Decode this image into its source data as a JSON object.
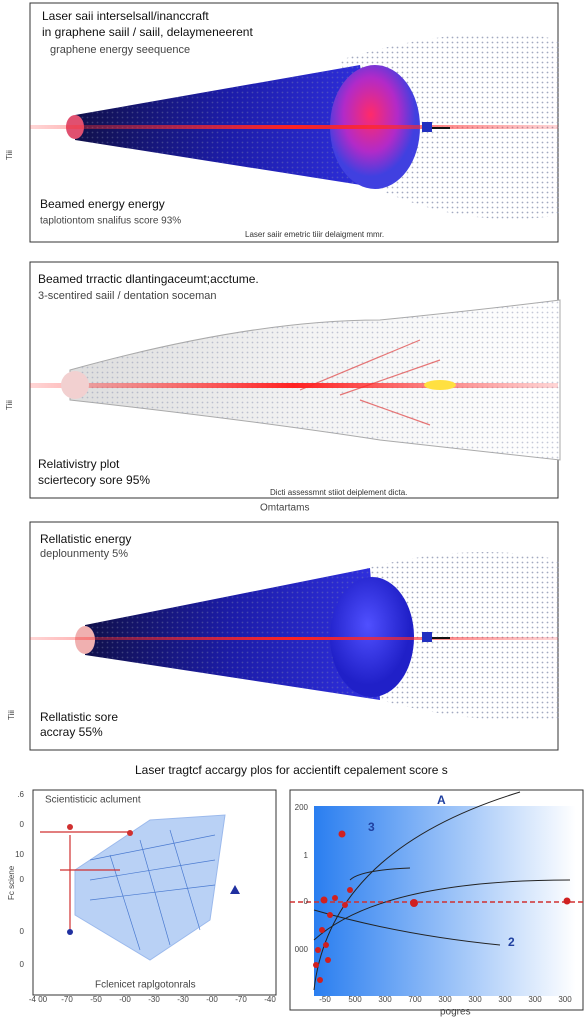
{
  "panels": [
    {
      "title": [
        "Laser saii interselsall/inanccraft",
        "in graphene saiil / saiil, delaymeneerent",
        "graphene energy seequence"
      ],
      "notes": [
        "Beamed energy energy",
        "taplotiontom snalifus score 93%"
      ],
      "caption": "Laser saiir emetric tiiir delaigment mmr.",
      "side": "Tiii"
    },
    {
      "title": [
        "Beamed trractic dlantingaceumt;acctume.",
        "3-scentired saiil / dentation soceman"
      ],
      "notes": [
        "Relativistry plot",
        "sciertecory sore 95%"
      ],
      "caption": "Dicti assessmnt stiiot deiplement dicta.",
      "side": "Tiii"
    },
    {
      "title": [
        "Rellatistic energy",
        "deplounmenty 5%"
      ],
      "notes": [
        "Rellatistic sore",
        "accray 55%"
      ],
      "side": "Tiii"
    }
  ],
  "below_panel2": "Omtartams",
  "section_caption": "Laser tragtcf accargy plos for accientift cepalement score s",
  "left_plot": {
    "title": "Scientisticic aclument",
    "xlabel": "Fclenicet raplgotonrals",
    "ylabel": "Fc sciene",
    "yticks": [
      ".6",
      "0",
      "10",
      "0",
      "0",
      "0"
    ],
    "xticks": [
      "-4 00",
      "-70",
      "-50",
      "-00",
      "-30",
      "-30",
      "-00",
      "-70",
      "-40"
    ]
  },
  "right_plot": {
    "xlabel": "pogres",
    "yticks": [
      "200",
      "1",
      "0",
      "000"
    ],
    "labels": [
      "A",
      "3",
      "2"
    ],
    "xticks": [
      "-50",
      "500",
      "300",
      "700",
      "300",
      "300",
      "300",
      "300",
      "300"
    ]
  }
}
